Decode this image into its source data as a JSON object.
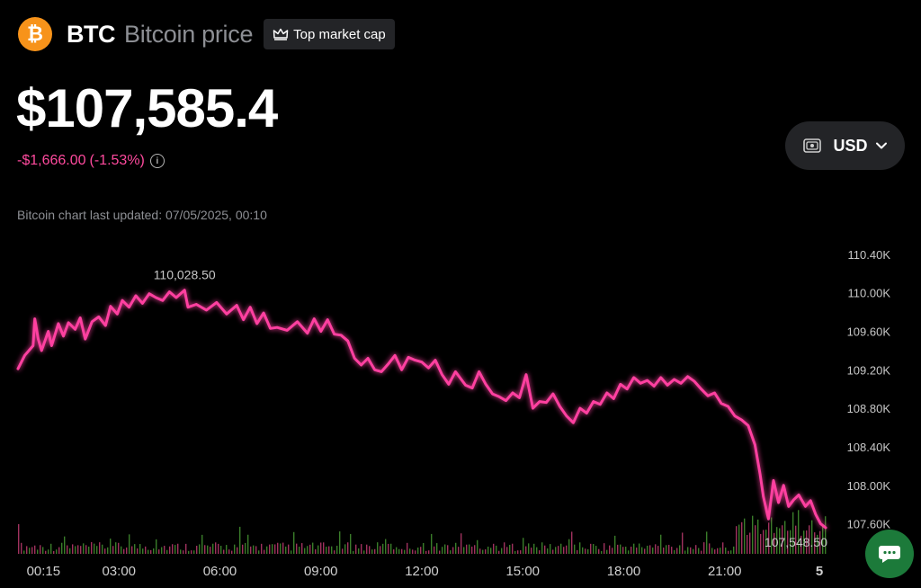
{
  "header": {
    "logo_glyph": "₿",
    "ticker": "BTC",
    "asset_name": "Bitcoin price",
    "badge_label": "Top market cap"
  },
  "price": {
    "current": "$107,585.4",
    "change_abs": "-$1,666.00",
    "change_pct": "(-1.53%)",
    "info_glyph": "i"
  },
  "currency": {
    "selected": "USD"
  },
  "updated_text": "Bitcoin chart last updated: 07/05/2025, 00:10",
  "colors": {
    "line": "#ff3fa0",
    "vol_up": "#3a7d2a",
    "vol_down": "#a0325e",
    "accent_chat": "#1c7a3a"
  },
  "chart_data": {
    "type": "line",
    "title": "",
    "xlabel": "",
    "ylabel": "",
    "x_range": [
      0,
      24
    ],
    "ylim": [
      107400,
      110520
    ],
    "y_ticks": [
      110400,
      110000,
      109600,
      109200,
      108800,
      108400,
      108000,
      107600
    ],
    "y_tick_labels": [
      "110.40K",
      "110.00K",
      "109.60K",
      "109.20K",
      "108.80K",
      "108.40K",
      "108.00K",
      "107.60K"
    ],
    "x_ticks": [
      0.25,
      3,
      6,
      9,
      12,
      15,
      18,
      21,
      24
    ],
    "x_tick_labels": [
      "00:15",
      "03:00",
      "06:00",
      "09:00",
      "12:00",
      "15:00",
      "18:00",
      "21:00",
      "5"
    ],
    "high": {
      "x": 4.95,
      "y": 110028.5,
      "label": "110,028.50"
    },
    "low": {
      "x": 24,
      "y": 107548.5,
      "label": "107,548.50"
    },
    "series": [
      {
        "name": "BTC/USD",
        "x": [
          0.0,
          0.2,
          0.45,
          0.5,
          0.6,
          0.7,
          0.9,
          1.0,
          1.2,
          1.35,
          1.5,
          1.7,
          1.85,
          2.0,
          2.2,
          2.4,
          2.6,
          2.75,
          2.95,
          3.1,
          3.3,
          3.5,
          3.7,
          3.9,
          4.1,
          4.3,
          4.5,
          4.7,
          4.95,
          5.05,
          5.3,
          5.6,
          5.9,
          6.2,
          6.5,
          6.7,
          6.9,
          7.1,
          7.3,
          7.5,
          7.7,
          8.0,
          8.3,
          8.6,
          8.8,
          9.0,
          9.2,
          9.4,
          9.6,
          9.8,
          10.0,
          10.2,
          10.4,
          10.6,
          10.8,
          11.0,
          11.2,
          11.4,
          11.6,
          11.8,
          12.0,
          12.2,
          12.4,
          12.6,
          12.8,
          13.0,
          13.3,
          13.5,
          13.7,
          13.9,
          14.1,
          14.3,
          14.5,
          14.7,
          14.9,
          15.1,
          15.3,
          15.5,
          15.7,
          15.9,
          16.1,
          16.3,
          16.5,
          16.7,
          16.9,
          17.1,
          17.3,
          17.5,
          17.7,
          17.9,
          18.1,
          18.3,
          18.5,
          18.7,
          18.9,
          19.1,
          19.3,
          19.5,
          19.7,
          19.9,
          20.1,
          20.3,
          20.5,
          20.7,
          20.9,
          21.1,
          21.3,
          21.5,
          21.7,
          21.9,
          22.05,
          22.15,
          22.3,
          22.45,
          22.6,
          22.75,
          22.9,
          23.05,
          23.2,
          23.4,
          23.55,
          23.7,
          23.85,
          24.0
        ],
        "y": [
          109210,
          109350,
          109450,
          109730,
          109520,
          109400,
          109600,
          109450,
          109680,
          109550,
          109690,
          109620,
          109740,
          109520,
          109700,
          109750,
          109660,
          109860,
          109780,
          109920,
          109850,
          109970,
          109890,
          109990,
          109950,
          109920,
          110010,
          109950,
          110028,
          109850,
          109880,
          109820,
          109900,
          109780,
          109870,
          109720,
          109850,
          109680,
          109790,
          109630,
          109640,
          109610,
          109700,
          109580,
          109730,
          109600,
          109720,
          109570,
          109560,
          109500,
          109320,
          109250,
          109320,
          109200,
          109180,
          109260,
          109350,
          109200,
          109330,
          109300,
          109280,
          109220,
          109300,
          109150,
          109050,
          109180,
          109040,
          109010,
          109180,
          109050,
          108950,
          108920,
          108880,
          108960,
          108910,
          109150,
          108800,
          108870,
          108860,
          108950,
          108820,
          108720,
          108650,
          108800,
          108750,
          108870,
          108840,
          108960,
          108900,
          109050,
          109000,
          109120,
          109060,
          109090,
          109030,
          109120,
          109040,
          109100,
          109060,
          109130,
          109080,
          109000,
          108930,
          108960,
          108850,
          108820,
          108720,
          108680,
          108620,
          108420,
          108120,
          107880,
          107650,
          108050,
          107820,
          108000,
          107780,
          107850,
          107900,
          107780,
          107840,
          107700,
          107600,
          107560
        ]
      }
    ]
  }
}
